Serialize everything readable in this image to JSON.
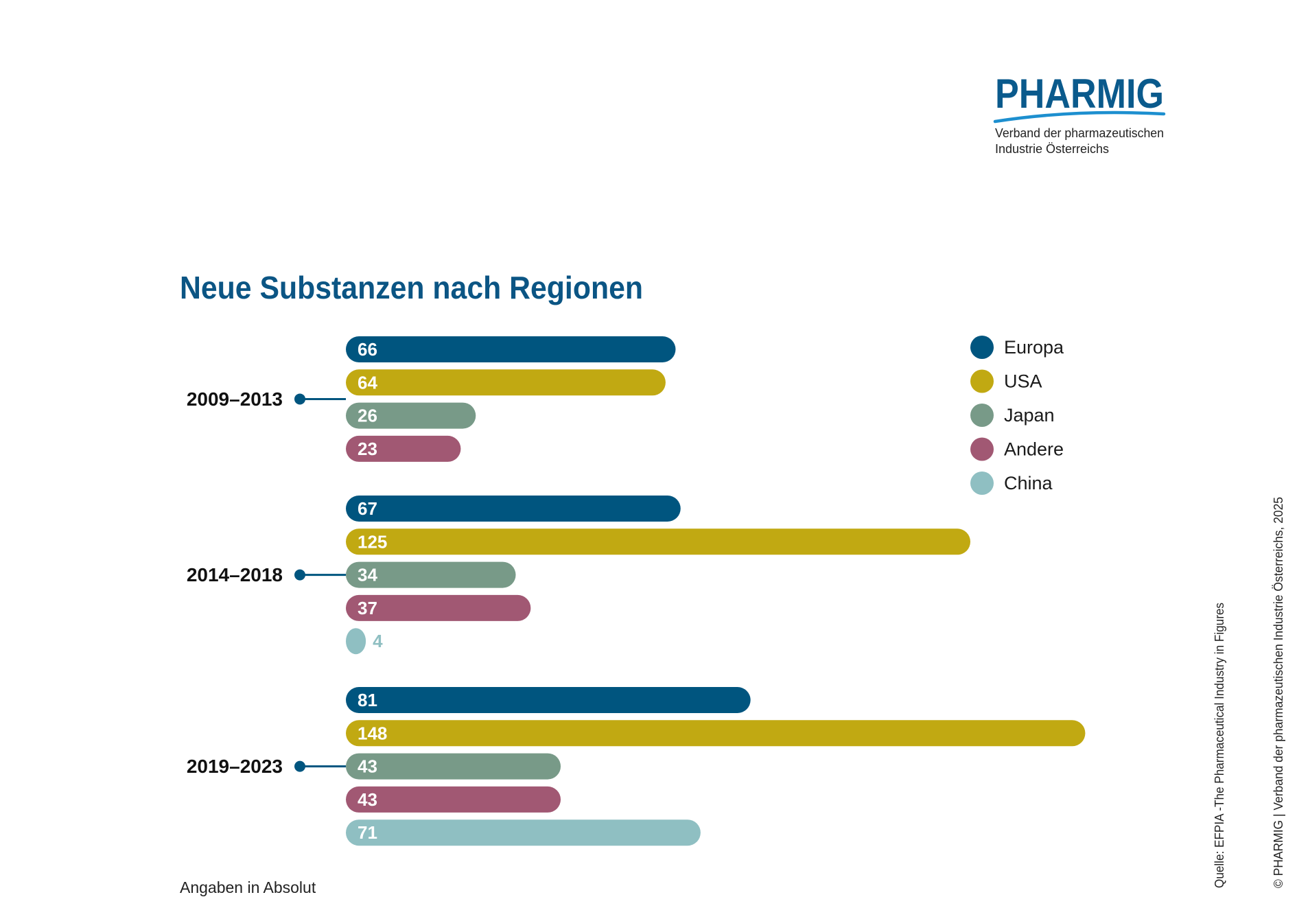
{
  "logo": {
    "name": "PHARMIG",
    "subtitle_line1": "Verband der pharmazeutischen",
    "subtitle_line2": "Industrie Österreichs",
    "color": "#0a5a8c",
    "swoosh_color": "#1d8fcf"
  },
  "chart_data": {
    "type": "bar",
    "orientation": "horizontal",
    "title": "Neue Substanzen nach Regionen",
    "categories": [
      "2009–2013",
      "2014–2018",
      "2019–2023"
    ],
    "series": [
      {
        "name": "Europa",
        "color": "#00557f",
        "values": [
          66,
          67,
          81
        ]
      },
      {
        "name": "USA",
        "color": "#c1a912",
        "values": [
          64,
          125,
          148
        ]
      },
      {
        "name": "Japan",
        "color": "#789a88",
        "values": [
          26,
          34,
          43
        ]
      },
      {
        "name": "Andere",
        "color": "#a15873",
        "values": [
          23,
          37,
          43
        ]
      },
      {
        "name": "China",
        "color": "#8fbfc2",
        "values": [
          null,
          4,
          71
        ]
      }
    ],
    "legend_position": "top-right",
    "xlim": [
      0,
      148
    ],
    "grid": false
  },
  "footnote": "Angaben in Absolut",
  "source": "Quelle: EFPIA -The Pharmaceutical Industry in Figures",
  "copyright": "© PHARMIG | Verband der pharmazeutischen Industrie Österreichs, 2025"
}
